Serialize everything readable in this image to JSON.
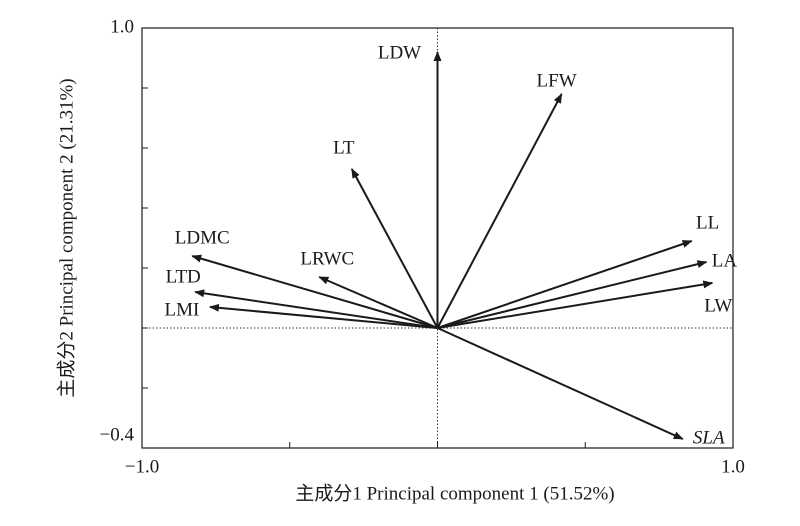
{
  "chart_data": {
    "type": "biplot",
    "xlabel": "主成分1 Principal component 1 (51.52%)",
    "ylabel": "主成分2 Principal component 2 (21.31%)",
    "xlim": [
      -1.0,
      1.0
    ],
    "ylim": [
      -0.4,
      1.0
    ],
    "xticks": [
      {
        "value": -1.0,
        "label": "−1.0"
      },
      {
        "value": 1.0,
        "label": "1.0"
      }
    ],
    "yticks": [
      {
        "value": -0.4,
        "label": "−0.4"
      },
      {
        "value": 1.0,
        "label": "1.0"
      }
    ],
    "xminorticks": [
      -0.5,
      0,
      0.5
    ],
    "yminorticks": [
      -0.2,
      0,
      0.2,
      0.4,
      0.6,
      0.8
    ],
    "color": "#1a1a1a",
    "vectors": [
      {
        "name": "LDW",
        "x": 0.0,
        "y": 0.92
      },
      {
        "name": "LFW",
        "x": 0.42,
        "y": 0.78
      },
      {
        "name": "LT",
        "x": -0.29,
        "y": 0.53
      },
      {
        "name": "LDMC",
        "x": -0.83,
        "y": 0.24
      },
      {
        "name": "LRWC",
        "x": -0.4,
        "y": 0.17
      },
      {
        "name": "LTD",
        "x": -0.82,
        "y": 0.12
      },
      {
        "name": "LMI",
        "x": -0.77,
        "y": 0.07
      },
      {
        "name": "LL",
        "x": 0.86,
        "y": 0.29
      },
      {
        "name": "LA",
        "x": 0.91,
        "y": 0.22
      },
      {
        "name": "LW",
        "x": 0.93,
        "y": 0.15
      },
      {
        "name": "SLA",
        "x": 0.83,
        "y": -0.37
      }
    ]
  }
}
